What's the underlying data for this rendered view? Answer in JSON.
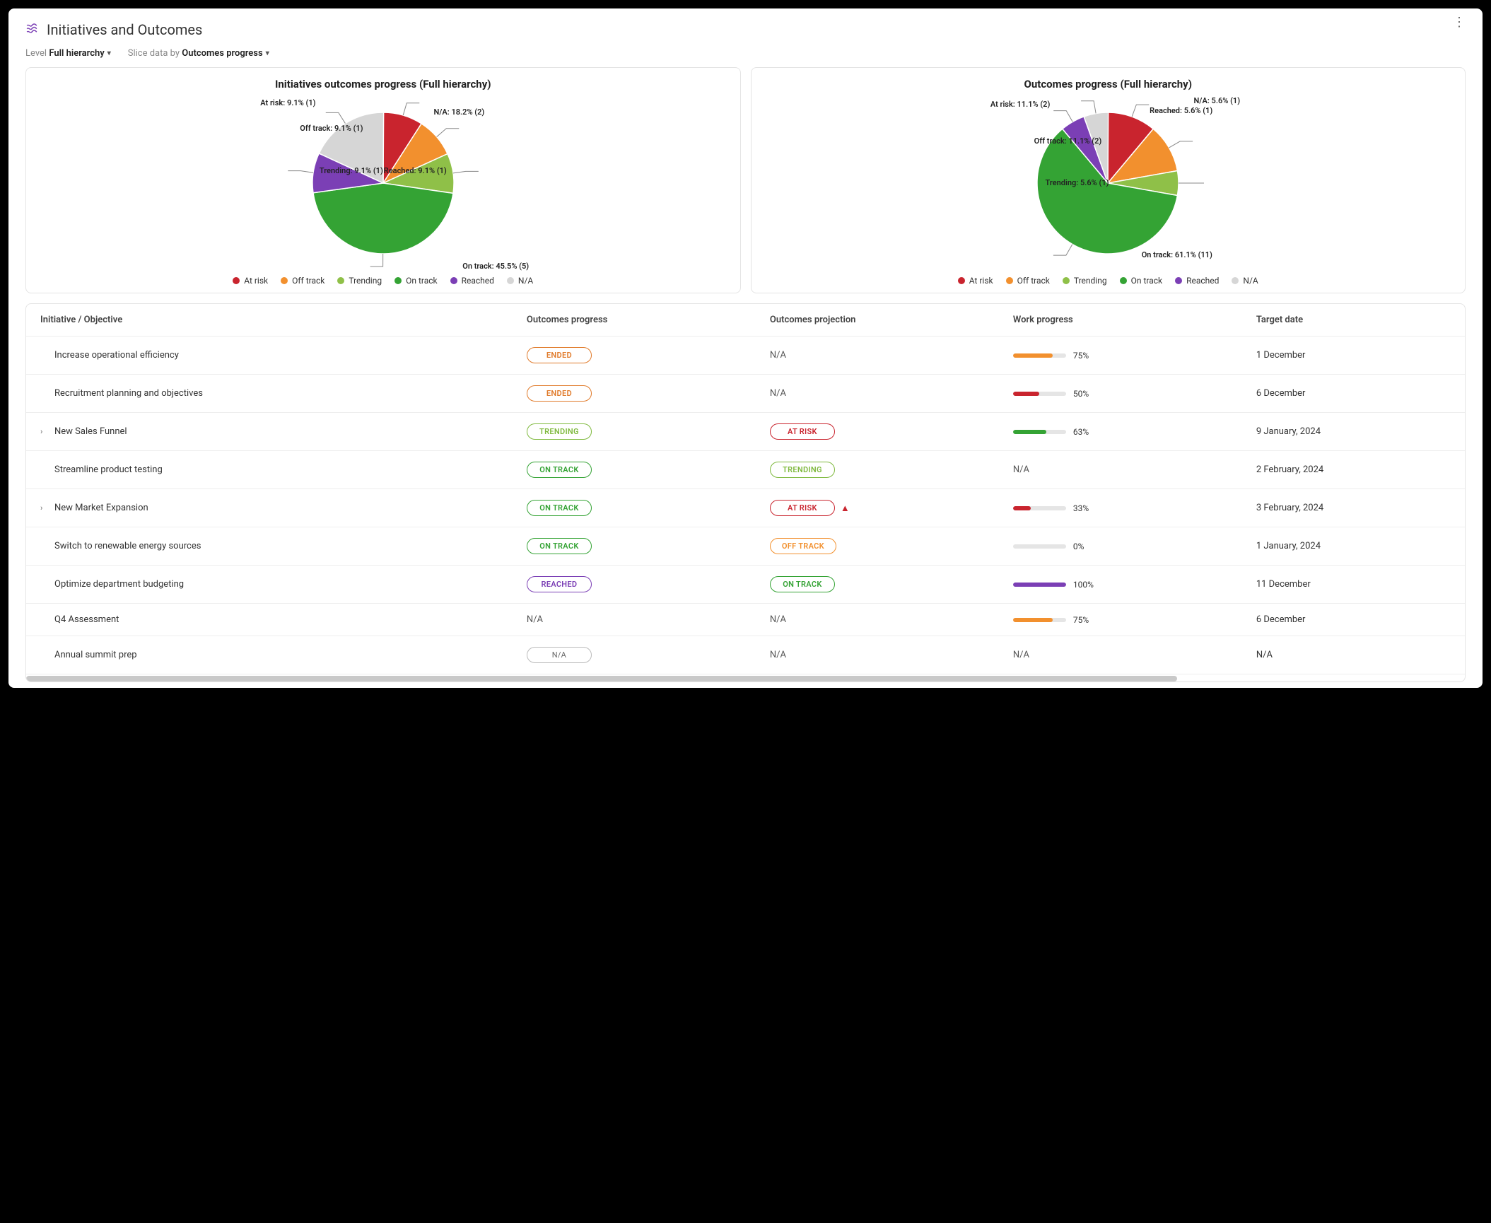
{
  "colors": {
    "at_risk": "#c9242e",
    "off_track": "#f2902e",
    "trending": "#8fc048",
    "on_track": "#34a334",
    "reached": "#7b3fb5",
    "na": "#d6d6d6",
    "progress_orange": "#f2902e",
    "progress_red": "#c9242e",
    "progress_green": "#34a334",
    "progress_purple": "#7b3fb5",
    "bg": "#ffffff",
    "border": "#e4e4e4"
  },
  "header": {
    "title": "Initiatives and Outcomes"
  },
  "filters": {
    "level_label": "Level",
    "level_value": "Full hierarchy",
    "slice_label": "Slice data by",
    "slice_value": "Outcomes progress"
  },
  "legend_items": [
    "At risk",
    "Off track",
    "Trending",
    "On track",
    "Reached",
    "N/A"
  ],
  "chart1": {
    "title": "Initiatives outcomes progress (Full hierarchy)",
    "type": "pie",
    "slices": [
      {
        "key": "at_risk",
        "label": "At risk: 9.1% (1)",
        "pct": 9.1,
        "count": 1,
        "color": "#c9242e"
      },
      {
        "key": "off_track",
        "label": "Off track: 9.1% (1)",
        "pct": 9.1,
        "count": 1,
        "color": "#f2902e"
      },
      {
        "key": "trending",
        "label": "Trending: 9.1% (1)",
        "pct": 9.1,
        "count": 1,
        "color": "#8fc048"
      },
      {
        "key": "on_track",
        "label": "On track: 45.5% (5)",
        "pct": 45.5,
        "count": 5,
        "color": "#34a334"
      },
      {
        "key": "reached",
        "label": "Reached: 9.1% (1)",
        "pct": 9.1,
        "count": 1,
        "color": "#7b3fb5"
      },
      {
        "key": "na",
        "label": "N/A: 18.2% (2)",
        "pct": 18.2,
        "count": 2,
        "color": "#d6d6d6"
      }
    ]
  },
  "chart2": {
    "title": "Outcomes progress (Full hierarchy)",
    "type": "pie",
    "slices": [
      {
        "key": "at_risk",
        "label": "At risk: 11.1% (2)",
        "pct": 11.1,
        "count": 2,
        "color": "#c9242e"
      },
      {
        "key": "off_track",
        "label": "Off track: 11.1% (2)",
        "pct": 11.1,
        "count": 2,
        "color": "#f2902e"
      },
      {
        "key": "trending",
        "label": "Trending: 5.6% (1)",
        "pct": 5.6,
        "count": 1,
        "color": "#8fc048"
      },
      {
        "key": "on_track",
        "label": "On track: 61.1% (11)",
        "pct": 61.1,
        "count": 11,
        "color": "#34a334"
      },
      {
        "key": "reached",
        "label": "Reached: 5.6% (1)",
        "pct": 5.6,
        "count": 1,
        "color": "#7b3fb5"
      },
      {
        "key": "na",
        "label": "N/A: 5.6% (1)",
        "pct": 5.6,
        "count": 1,
        "color": "#d6d6d6"
      }
    ]
  },
  "table": {
    "columns": [
      "Initiative / Objective",
      "Outcomes progress",
      "Outcomes projection",
      "Work progress",
      "Target date"
    ],
    "rows": [
      {
        "expandable": false,
        "name": "Increase operational efficiency",
        "progress": "ENDED",
        "progress_style": "ended",
        "projection": "N/A",
        "projection_style": "text",
        "work_pct": 75,
        "work_color": "#f2902e",
        "target": "1 December"
      },
      {
        "expandable": false,
        "name": "Recruitment planning and objectives",
        "progress": "ENDED",
        "progress_style": "ended",
        "projection": "N/A",
        "projection_style": "text",
        "work_pct": 50,
        "work_color": "#c9242e",
        "target": "6 December"
      },
      {
        "expandable": true,
        "name": "New Sales Funnel",
        "progress": "TRENDING",
        "progress_style": "trending",
        "projection": "AT RISK",
        "projection_style": "atrisk",
        "work_pct": 63,
        "work_color": "#34a334",
        "target": "9 January, 2024"
      },
      {
        "expandable": false,
        "name": "Streamline product testing",
        "progress": "ON TRACK",
        "progress_style": "ontrack",
        "projection": "TRENDING",
        "projection_style": "trending",
        "work_pct": null,
        "work_text": "N/A",
        "target": "2 February, 2024"
      },
      {
        "expandable": true,
        "name": "New Market Expansion",
        "progress": "ON TRACK",
        "progress_style": "ontrack",
        "projection": "AT RISK",
        "projection_style": "atrisk",
        "warn": true,
        "work_pct": 33,
        "work_color": "#c9242e",
        "target": "3 February, 2024"
      },
      {
        "expandable": false,
        "name": "Switch to renewable energy sources",
        "progress": "ON TRACK",
        "progress_style": "ontrack",
        "projection": "OFF TRACK",
        "projection_style": "offtrack",
        "work_pct": 0,
        "work_color": "#c9242e",
        "target": "1 January, 2024"
      },
      {
        "expandable": false,
        "name": "Optimize department budgeting",
        "progress": "REACHED",
        "progress_style": "reached",
        "projection": "ON TRACK",
        "projection_style": "ontrack",
        "work_pct": 100,
        "work_color": "#7b3fb5",
        "target": "11 December"
      },
      {
        "expandable": false,
        "name": "Q4 Assessment",
        "progress": "N/A",
        "progress_style": "text",
        "projection": "N/A",
        "projection_style": "text",
        "work_pct": 75,
        "work_color": "#f2902e",
        "target": "6 December"
      },
      {
        "expandable": false,
        "name": "Annual summit prep",
        "progress": "N/A",
        "progress_style": "napill",
        "projection": "N/A",
        "projection_style": "text",
        "work_pct": null,
        "work_text": "N/A",
        "target": "N/A"
      }
    ]
  }
}
